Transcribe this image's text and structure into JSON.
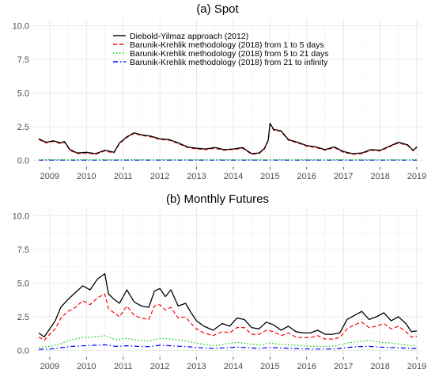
{
  "legend": {
    "placement": "top-center, inside panel (a)",
    "entries": [
      {
        "label": "Diebold-Yilmaz approach (2012)",
        "color": "#000000",
        "dash": "solid"
      },
      {
        "label": "Barunik-Krehlik methodology (2018) from 1 to 5 days",
        "color": "#ff0000",
        "dash": "dashed"
      },
      {
        "label": "Barunik-Krehlik methodology (2018) from 5 to 21 days",
        "color": "#00cc00",
        "dash": "dotted"
      },
      {
        "label": "Barunik-Krehlik methodology (2018) from 21 to infinity",
        "color": "#0000ff",
        "dash": "dashdot"
      }
    ]
  },
  "chart_data": [
    {
      "type": "line",
      "title": "(a) Spot",
      "xlabel": "",
      "ylabel": "",
      "grid": true,
      "xlim": [
        2008.55,
        2019.15
      ],
      "ylim": [
        -0.5,
        10.5
      ],
      "x_ticks": [
        "2009",
        "2010",
        "2011",
        "2012",
        "2013",
        "2014",
        "2015",
        "2016",
        "2017",
        "2018",
        "2019"
      ],
      "y_ticks": [
        "0.0",
        "2.5",
        "5.0",
        "7.5",
        "10.0"
      ],
      "series": [
        {
          "name": "Diebold-Yilmaz approach (2012)",
          "x": [
            2008.7,
            2008.9,
            2009.1,
            2009.3,
            2009.4,
            2009.55,
            2009.75,
            2010.0,
            2010.25,
            2010.5,
            2010.75,
            2010.9,
            2011.1,
            2011.3,
            2011.5,
            2011.75,
            2012.0,
            2012.25,
            2012.5,
            2012.75,
            2013.0,
            2013.25,
            2013.5,
            2013.75,
            2014.0,
            2014.25,
            2014.5,
            2014.7,
            2014.85,
            2014.95,
            2015.0,
            2015.1,
            2015.3,
            2015.5,
            2015.75,
            2016.0,
            2016.25,
            2016.5,
            2016.75,
            2017.0,
            2017.25,
            2017.5,
            2017.75,
            2018.0,
            2018.25,
            2018.5,
            2018.75,
            2018.9,
            2019.0
          ],
          "values": [
            1.6,
            1.35,
            1.45,
            1.3,
            1.4,
            0.8,
            0.55,
            0.6,
            0.5,
            0.75,
            0.6,
            1.3,
            1.75,
            2.05,
            1.9,
            1.8,
            1.6,
            1.55,
            1.3,
            1.0,
            0.9,
            0.85,
            0.95,
            0.8,
            0.85,
            0.95,
            0.5,
            0.55,
            0.9,
            1.5,
            2.75,
            2.3,
            2.2,
            1.55,
            1.35,
            1.1,
            1.0,
            0.8,
            1.0,
            0.65,
            0.5,
            0.55,
            0.8,
            0.75,
            1.05,
            1.35,
            1.15,
            0.75,
            1.0
          ]
        },
        {
          "name": "Barunik-Krehlik methodology (2018) from 1 to 5 days",
          "x": [
            2008.7,
            2008.9,
            2009.1,
            2009.3,
            2009.4,
            2009.55,
            2009.75,
            2010.0,
            2010.25,
            2010.5,
            2010.75,
            2010.9,
            2011.1,
            2011.3,
            2011.5,
            2011.75,
            2012.0,
            2012.25,
            2012.5,
            2012.75,
            2013.0,
            2013.25,
            2013.5,
            2013.75,
            2014.0,
            2014.25,
            2014.5,
            2014.7,
            2014.85,
            2014.95,
            2015.0,
            2015.1,
            2015.3,
            2015.5,
            2015.75,
            2016.0,
            2016.25,
            2016.5,
            2016.75,
            2017.0,
            2017.25,
            2017.5,
            2017.75,
            2018.0,
            2018.25,
            2018.5,
            2018.75,
            2018.9,
            2019.0
          ],
          "values": [
            1.55,
            1.3,
            1.4,
            1.25,
            1.35,
            0.75,
            0.5,
            0.55,
            0.45,
            0.7,
            0.55,
            1.25,
            1.7,
            2.0,
            1.85,
            1.75,
            1.55,
            1.5,
            1.25,
            0.95,
            0.85,
            0.8,
            0.9,
            0.75,
            0.8,
            0.9,
            0.45,
            0.5,
            0.85,
            1.45,
            2.7,
            2.25,
            2.15,
            1.5,
            1.3,
            1.05,
            0.95,
            0.75,
            0.95,
            0.6,
            0.45,
            0.5,
            0.75,
            0.7,
            1.0,
            1.3,
            1.1,
            0.7,
            0.95
          ]
        },
        {
          "name": "Barunik-Krehlik methodology (2018) from 5 to 21 days",
          "x": [
            2008.7,
            2019.0
          ],
          "values": [
            0.05,
            0.05
          ]
        },
        {
          "name": "Barunik-Krehlik methodology (2018) from 21 to infinity",
          "x": [
            2008.7,
            2019.0
          ],
          "values": [
            0.02,
            0.02
          ]
        }
      ]
    },
    {
      "type": "line",
      "title": "(b) Monthly Futures",
      "xlabel": "",
      "ylabel": "",
      "grid": true,
      "xlim": [
        2008.55,
        2019.15
      ],
      "ylim": [
        -0.5,
        10.5
      ],
      "x_ticks": [
        "2009",
        "2010",
        "2011",
        "2012",
        "2013",
        "2014",
        "2015",
        "2016",
        "2017",
        "2018",
        "2019"
      ],
      "y_ticks": [
        "0.0",
        "2.5",
        "5.0",
        "7.5",
        "10.0"
      ],
      "series": [
        {
          "name": "Diebold-Yilmaz approach (2012)",
          "x": [
            2008.7,
            2008.85,
            2009.0,
            2009.15,
            2009.3,
            2009.5,
            2009.7,
            2009.9,
            2010.1,
            2010.3,
            2010.5,
            2010.6,
            2010.75,
            2010.9,
            2011.1,
            2011.3,
            2011.5,
            2011.7,
            2011.85,
            2012.0,
            2012.15,
            2012.3,
            2012.5,
            2012.7,
            2012.85,
            2013.0,
            2013.2,
            2013.45,
            2013.7,
            2013.9,
            2014.1,
            2014.3,
            2014.5,
            2014.7,
            2014.9,
            2015.1,
            2015.3,
            2015.5,
            2015.7,
            2015.9,
            2016.1,
            2016.3,
            2016.5,
            2016.7,
            2016.9,
            2017.1,
            2017.3,
            2017.5,
            2017.7,
            2017.9,
            2018.1,
            2018.3,
            2018.5,
            2018.7,
            2018.85,
            2019.0
          ],
          "values": [
            1.3,
            1.0,
            1.6,
            2.2,
            3.2,
            3.8,
            4.3,
            4.8,
            4.5,
            5.3,
            5.7,
            4.2,
            3.8,
            3.5,
            4.5,
            3.6,
            3.3,
            3.2,
            4.4,
            4.6,
            4.0,
            4.5,
            3.3,
            3.5,
            2.8,
            2.2,
            1.8,
            1.5,
            2.0,
            1.8,
            2.4,
            2.3,
            1.7,
            1.6,
            2.1,
            1.9,
            1.5,
            1.8,
            1.4,
            1.3,
            1.3,
            1.5,
            1.2,
            1.2,
            1.3,
            2.3,
            2.6,
            2.9,
            2.3,
            2.5,
            2.8,
            2.2,
            2.5,
            2.0,
            1.4,
            1.45
          ]
        },
        {
          "name": "Barunik-Krehlik methodology (2018) from 1 to 5 days",
          "x": [
            2008.7,
            2008.85,
            2009.0,
            2009.15,
            2009.3,
            2009.5,
            2009.7,
            2009.9,
            2010.1,
            2010.3,
            2010.5,
            2010.6,
            2010.75,
            2010.9,
            2011.1,
            2011.3,
            2011.5,
            2011.7,
            2011.85,
            2012.0,
            2012.15,
            2012.3,
            2012.5,
            2012.7,
            2012.85,
            2013.0,
            2013.2,
            2013.45,
            2013.7,
            2013.9,
            2014.1,
            2014.3,
            2014.5,
            2014.7,
            2014.9,
            2015.1,
            2015.3,
            2015.5,
            2015.7,
            2015.9,
            2016.1,
            2016.3,
            2016.5,
            2016.7,
            2016.9,
            2017.1,
            2017.3,
            2017.5,
            2017.7,
            2017.9,
            2018.1,
            2018.3,
            2018.5,
            2018.7,
            2018.85,
            2019.0
          ],
          "values": [
            1.0,
            0.75,
            1.2,
            1.6,
            2.4,
            2.9,
            3.2,
            3.7,
            3.4,
            3.9,
            4.2,
            3.1,
            2.8,
            2.5,
            3.3,
            2.6,
            2.4,
            2.3,
            3.3,
            3.4,
            3.0,
            3.2,
            2.4,
            2.5,
            2.0,
            1.6,
            1.3,
            1.1,
            1.4,
            1.3,
            1.7,
            1.7,
            1.2,
            1.2,
            1.5,
            1.4,
            1.1,
            1.3,
            1.0,
            0.95,
            0.95,
            1.1,
            0.85,
            0.85,
            0.95,
            1.6,
            1.9,
            2.1,
            1.7,
            1.8,
            2.0,
            1.6,
            1.8,
            1.4,
            1.0,
            1.05
          ]
        },
        {
          "name": "Barunik-Krehlik methodology (2018) from 5 to 21 days",
          "x": [
            2008.7,
            2009.0,
            2009.3,
            2009.6,
            2009.9,
            2010.2,
            2010.5,
            2010.8,
            2011.1,
            2011.4,
            2011.7,
            2012.0,
            2012.3,
            2012.6,
            2012.9,
            2013.2,
            2013.5,
            2013.8,
            2014.1,
            2014.4,
            2014.7,
            2015.0,
            2015.3,
            2015.6,
            2015.9,
            2016.2,
            2016.5,
            2016.8,
            2017.1,
            2017.4,
            2017.7,
            2018.0,
            2018.3,
            2018.6,
            2018.9,
            2019.0
          ],
          "values": [
            0.25,
            0.3,
            0.5,
            0.8,
            0.95,
            1.0,
            1.1,
            0.8,
            0.9,
            0.75,
            0.7,
            0.9,
            0.85,
            0.75,
            0.6,
            0.45,
            0.35,
            0.5,
            0.6,
            0.5,
            0.4,
            0.55,
            0.45,
            0.4,
            0.35,
            0.3,
            0.3,
            0.35,
            0.55,
            0.65,
            0.75,
            0.6,
            0.55,
            0.45,
            0.35,
            0.35
          ]
        },
        {
          "name": "Barunik-Krehlik methodology (2018) from 21 to infinity",
          "x": [
            2008.7,
            2009.0,
            2009.3,
            2009.6,
            2009.9,
            2010.2,
            2010.5,
            2010.8,
            2011.1,
            2011.4,
            2011.7,
            2012.0,
            2012.3,
            2012.6,
            2012.9,
            2013.2,
            2013.5,
            2013.8,
            2014.1,
            2014.4,
            2014.7,
            2015.0,
            2015.3,
            2015.6,
            2015.9,
            2016.2,
            2016.5,
            2016.8,
            2017.1,
            2017.4,
            2017.7,
            2018.0,
            2018.3,
            2018.6,
            2018.9,
            2019.0
          ],
          "values": [
            0.08,
            0.1,
            0.2,
            0.3,
            0.35,
            0.38,
            0.42,
            0.3,
            0.35,
            0.3,
            0.28,
            0.38,
            0.35,
            0.3,
            0.25,
            0.18,
            0.15,
            0.2,
            0.25,
            0.2,
            0.15,
            0.22,
            0.18,
            0.15,
            0.12,
            0.1,
            0.1,
            0.12,
            0.22,
            0.28,
            0.3,
            0.25,
            0.22,
            0.18,
            0.14,
            0.14
          ]
        }
      ]
    }
  ]
}
